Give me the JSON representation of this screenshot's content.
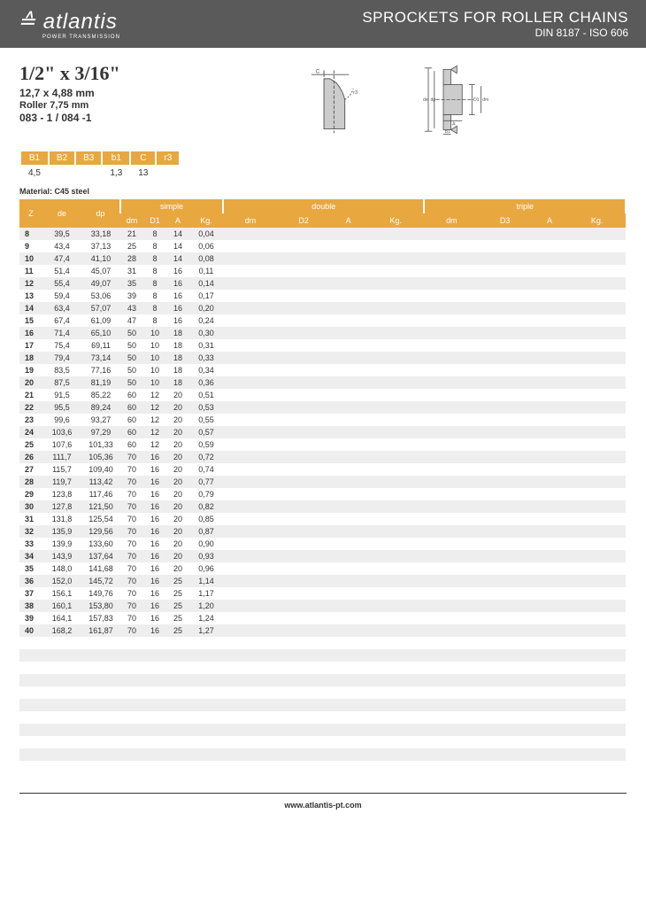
{
  "header": {
    "brand": "atlantis",
    "brand_sub": "POWER TRANSMISSION",
    "glyph": "≙",
    "title": "SPROCKETS FOR ROLLER CHAINS",
    "sub": "DIN 8187 - ISO 606"
  },
  "spec": {
    "main": "1/2\" x 3/16\"",
    "mm": "12,7 x 4,88 mm",
    "roller": "Roller 7,75 mm",
    "code": "083 - 1 / 084 -1"
  },
  "small_table": {
    "headers": [
      "B1",
      "B2",
      "B3",
      "b1",
      "C",
      "r3"
    ],
    "row": [
      "4,5",
      "",
      "",
      "1,3",
      "13",
      ""
    ]
  },
  "material": "Material: C45 steel",
  "columns": {
    "z": "Z",
    "de": "de",
    "dp": "dp",
    "groups": [
      "simple",
      "double",
      "triple"
    ],
    "sub": [
      [
        "dm",
        "D1",
        "A",
        "Kg."
      ],
      [
        "dm",
        "D2",
        "A",
        "Kg."
      ],
      [
        "dm",
        "D3",
        "A",
        "Kg."
      ]
    ]
  },
  "rows": [
    {
      "z": "8",
      "de": "39,5",
      "dp": "33,18",
      "dm": "21",
      "d1": "8",
      "a": "14",
      "kg": "0,04"
    },
    {
      "z": "9",
      "de": "43,4",
      "dp": "37,13",
      "dm": "25",
      "d1": "8",
      "a": "14",
      "kg": "0,06"
    },
    {
      "z": "10",
      "de": "47,4",
      "dp": "41,10",
      "dm": "28",
      "d1": "8",
      "a": "14",
      "kg": "0,08"
    },
    {
      "z": "11",
      "de": "51,4",
      "dp": "45,07",
      "dm": "31",
      "d1": "8",
      "a": "16",
      "kg": "0,11"
    },
    {
      "z": "12",
      "de": "55,4",
      "dp": "49,07",
      "dm": "35",
      "d1": "8",
      "a": "16",
      "kg": "0,14"
    },
    {
      "z": "13",
      "de": "59,4",
      "dp": "53,06",
      "dm": "39",
      "d1": "8",
      "a": "16",
      "kg": "0,17"
    },
    {
      "z": "14",
      "de": "63,4",
      "dp": "57,07",
      "dm": "43",
      "d1": "8",
      "a": "16",
      "kg": "0,20"
    },
    {
      "z": "15",
      "de": "67,4",
      "dp": "61,09",
      "dm": "47",
      "d1": "8",
      "a": "16",
      "kg": "0,24"
    },
    {
      "z": "16",
      "de": "71,4",
      "dp": "65,10",
      "dm": "50",
      "d1": "10",
      "a": "18",
      "kg": "0,30"
    },
    {
      "z": "17",
      "de": "75,4",
      "dp": "69,11",
      "dm": "50",
      "d1": "10",
      "a": "18",
      "kg": "0,31"
    },
    {
      "z": "18",
      "de": "79,4",
      "dp": "73,14",
      "dm": "50",
      "d1": "10",
      "a": "18",
      "kg": "0,33"
    },
    {
      "z": "19",
      "de": "83,5",
      "dp": "77,16",
      "dm": "50",
      "d1": "10",
      "a": "18",
      "kg": "0,34"
    },
    {
      "z": "20",
      "de": "87,5",
      "dp": "81,19",
      "dm": "50",
      "d1": "10",
      "a": "18",
      "kg": "0,36"
    },
    {
      "z": "21",
      "de": "91,5",
      "dp": "85,22",
      "dm": "60",
      "d1": "12",
      "a": "20",
      "kg": "0,51"
    },
    {
      "z": "22",
      "de": "95,5",
      "dp": "89,24",
      "dm": "60",
      "d1": "12",
      "a": "20",
      "kg": "0,53"
    },
    {
      "z": "23",
      "de": "99,6",
      "dp": "93,27",
      "dm": "60",
      "d1": "12",
      "a": "20",
      "kg": "0,55"
    },
    {
      "z": "24",
      "de": "103,6",
      "dp": "97,29",
      "dm": "60",
      "d1": "12",
      "a": "20",
      "kg": "0,57"
    },
    {
      "z": "25",
      "de": "107,6",
      "dp": "101,33",
      "dm": "60",
      "d1": "12",
      "a": "20",
      "kg": "0,59"
    },
    {
      "z": "26",
      "de": "111,7",
      "dp": "105,36",
      "dm": "70",
      "d1": "16",
      "a": "20",
      "kg": "0,72"
    },
    {
      "z": "27",
      "de": "115,7",
      "dp": "109,40",
      "dm": "70",
      "d1": "16",
      "a": "20",
      "kg": "0,74"
    },
    {
      "z": "28",
      "de": "119,7",
      "dp": "113,42",
      "dm": "70",
      "d1": "16",
      "a": "20",
      "kg": "0,77"
    },
    {
      "z": "29",
      "de": "123,8",
      "dp": "117,46",
      "dm": "70",
      "d1": "16",
      "a": "20",
      "kg": "0,79"
    },
    {
      "z": "30",
      "de": "127,8",
      "dp": "121,50",
      "dm": "70",
      "d1": "16",
      "a": "20",
      "kg": "0,82"
    },
    {
      "z": "31",
      "de": "131,8",
      "dp": "125,54",
      "dm": "70",
      "d1": "16",
      "a": "20",
      "kg": "0,85"
    },
    {
      "z": "32",
      "de": "135,9",
      "dp": "129,56",
      "dm": "70",
      "d1": "16",
      "a": "20",
      "kg": "0,87"
    },
    {
      "z": "33",
      "de": "139,9",
      "dp": "133,60",
      "dm": "70",
      "d1": "16",
      "a": "20",
      "kg": "0,90"
    },
    {
      "z": "34",
      "de": "143,9",
      "dp": "137,64",
      "dm": "70",
      "d1": "16",
      "a": "20",
      "kg": "0,93"
    },
    {
      "z": "35",
      "de": "148,0",
      "dp": "141,68",
      "dm": "70",
      "d1": "16",
      "a": "20",
      "kg": "0,96"
    },
    {
      "z": "36",
      "de": "152,0",
      "dp": "145,72",
      "dm": "70",
      "d1": "16",
      "a": "25",
      "kg": "1,14"
    },
    {
      "z": "37",
      "de": "156,1",
      "dp": "149,76",
      "dm": "70",
      "d1": "16",
      "a": "25",
      "kg": "1,17"
    },
    {
      "z": "38",
      "de": "160,1",
      "dp": "153,80",
      "dm": "70",
      "d1": "16",
      "a": "25",
      "kg": "1,20"
    },
    {
      "z": "39",
      "de": "164,1",
      "dp": "157,83",
      "dm": "70",
      "d1": "16",
      "a": "25",
      "kg": "1,24"
    },
    {
      "z": "40",
      "de": "168,2",
      "dp": "161,87",
      "dm": "70",
      "d1": "16",
      "a": "25",
      "kg": "1,27"
    }
  ],
  "empty_rows": 10,
  "footer": "www.atlantis-pt.com",
  "colors": {
    "header_bg": "#5a5a5a",
    "accent": "#e8a73f",
    "row_alt": "#eeeeee"
  }
}
